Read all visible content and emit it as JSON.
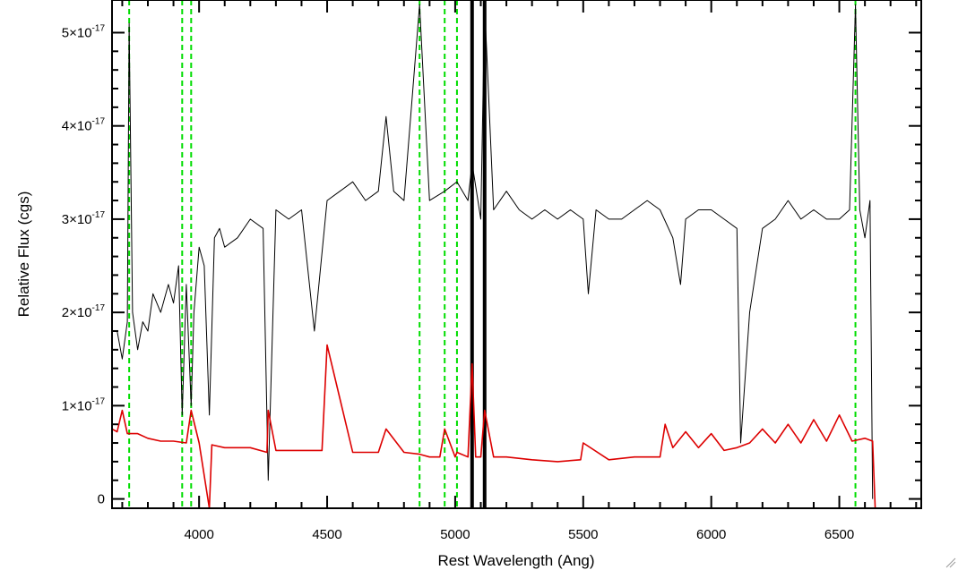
{
  "chart_data": {
    "type": "line",
    "title": "",
    "xlabel": "Rest Wavelength (Ang)",
    "ylabel": "Relative Flux (cgs)",
    "xlim": [
      3660,
      6820
    ],
    "ylim": [
      -0.1,
      5.35
    ],
    "y_scale_note": "×10^-17",
    "x_ticks": [
      4000,
      4500,
      5000,
      5500,
      6000,
      6500
    ],
    "y_ticks": [
      {
        "value": 0,
        "label": "0",
        "exp": ""
      },
      {
        "value": 1,
        "label": "1×10",
        "exp": "-17"
      },
      {
        "value": 2,
        "label": "2×10",
        "exp": "-17"
      },
      {
        "value": 3,
        "label": "3×10",
        "exp": "-17"
      },
      {
        "value": 4,
        "label": "4×10",
        "exp": "-17"
      },
      {
        "value": 5,
        "label": "5×10",
        "exp": "-17"
      }
    ],
    "vlines": {
      "dashed_green": [
        3727,
        3934,
        3969,
        4861,
        4959,
        5007,
        6563
      ],
      "solid_black": [
        5066,
        5115
      ],
      "color_dashed": "#00dd00"
    },
    "series": [
      {
        "color": "#000000",
        "x": [
          3680,
          3700,
          3720,
          3727,
          3740,
          3760,
          3780,
          3800,
          3820,
          3850,
          3880,
          3900,
          3920,
          3934,
          3950,
          3969,
          3980,
          4000,
          4020,
          4040,
          4060,
          4080,
          4100,
          4150,
          4200,
          4250,
          4270,
          4300,
          4350,
          4400,
          4450,
          4500,
          4550,
          4600,
          4650,
          4700,
          4730,
          4760,
          4800,
          4861,
          4900,
          4959,
          5007,
          5050,
          5066,
          5100,
          5115,
          5150,
          5200,
          5250,
          5300,
          5350,
          5400,
          5450,
          5500,
          5520,
          5550,
          5600,
          5650,
          5700,
          5750,
          5800,
          5850,
          5880,
          5900,
          5950,
          6000,
          6050,
          6100,
          6115,
          6150,
          6200,
          6250,
          6300,
          6350,
          6400,
          6450,
          6500,
          6540,
          6563,
          6580,
          6600,
          6620,
          6630
        ],
        "y": [
          1.8,
          1.5,
          1.9,
          5.1,
          2.0,
          1.6,
          1.9,
          1.8,
          2.2,
          2.0,
          2.3,
          2.1,
          2.5,
          0.9,
          2.3,
          1.0,
          2.0,
          2.7,
          2.5,
          0.9,
          2.8,
          2.9,
          2.7,
          2.8,
          3.0,
          2.9,
          0.2,
          3.1,
          3.0,
          3.1,
          1.8,
          3.2,
          3.3,
          3.4,
          3.2,
          3.3,
          4.1,
          3.3,
          3.2,
          5.3,
          3.2,
          3.3,
          3.4,
          3.2,
          3.6,
          3.0,
          5.3,
          3.1,
          3.3,
          3.1,
          3.0,
          3.1,
          3.0,
          3.1,
          3.0,
          2.2,
          3.1,
          3.0,
          3.0,
          3.1,
          3.2,
          3.1,
          2.8,
          2.3,
          3.0,
          3.1,
          3.1,
          3.0,
          2.9,
          0.6,
          2.0,
          2.9,
          3.0,
          3.2,
          3.0,
          3.1,
          3.0,
          3.0,
          3.1,
          5.3,
          3.1,
          2.8,
          3.2,
          0.0
        ]
      },
      {
        "color": "#dd0000",
        "x": [
          3660,
          3680,
          3700,
          3720,
          3760,
          3800,
          3850,
          3900,
          3950,
          3969,
          4000,
          4040,
          4050,
          4100,
          4200,
          4265,
          4270,
          4300,
          4400,
          4480,
          4500,
          4600,
          4700,
          4730,
          4800,
          4861,
          4900,
          4940,
          4959,
          5000,
          5007,
          5050,
          5066,
          5080,
          5100,
          5115,
          5150,
          5200,
          5300,
          5400,
          5490,
          5500,
          5600,
          5700,
          5800,
          5820,
          5850,
          5900,
          5950,
          6000,
          6050,
          6100,
          6150,
          6200,
          6250,
          6300,
          6350,
          6400,
          6450,
          6500,
          6550,
          6600,
          6630,
          6640,
          6820
        ],
        "y": [
          0.75,
          0.72,
          0.95,
          0.7,
          0.7,
          0.65,
          0.62,
          0.62,
          0.6,
          0.95,
          0.6,
          -0.1,
          0.58,
          0.55,
          0.55,
          0.5,
          0.95,
          0.52,
          0.52,
          0.52,
          1.65,
          0.5,
          0.5,
          0.75,
          0.5,
          0.48,
          0.45,
          0.45,
          0.75,
          0.45,
          0.5,
          0.45,
          1.45,
          0.45,
          0.45,
          0.95,
          0.45,
          0.45,
          0.42,
          0.4,
          0.42,
          0.6,
          0.42,
          0.45,
          0.45,
          0.8,
          0.55,
          0.72,
          0.55,
          0.7,
          0.52,
          0.55,
          0.6,
          0.75,
          0.6,
          0.8,
          0.6,
          0.85,
          0.62,
          0.9,
          0.62,
          0.65,
          0.62,
          -0.1,
          -0.1
        ]
      }
    ]
  }
}
